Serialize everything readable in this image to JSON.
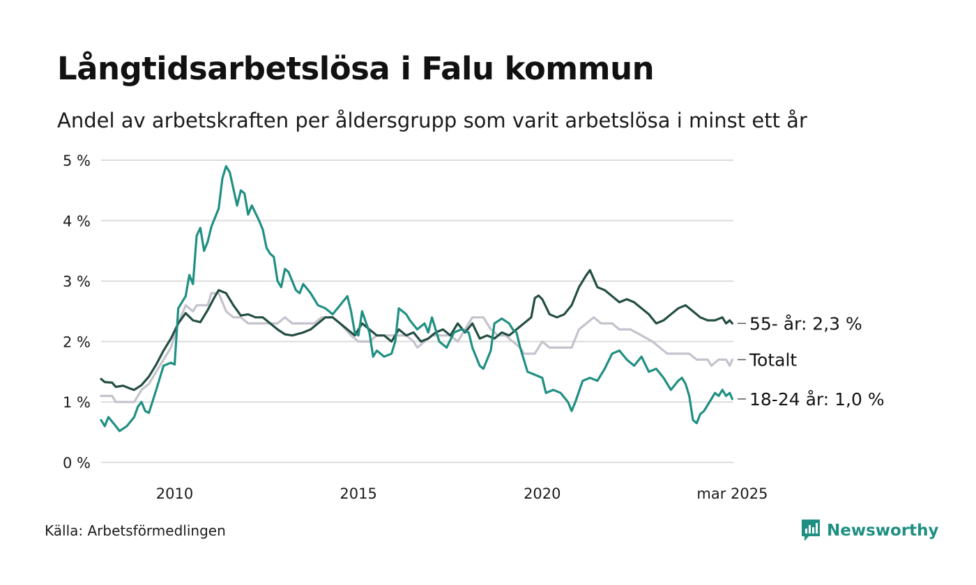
{
  "title": "Långtidsarbetslösa i Falu kommun",
  "subtitle": "Andel av arbetskraften per åldersgrupp som varit arbetslösa i minst ett år",
  "source": "Källa: Arbetsförmedlingen",
  "brand": "Newsworthy",
  "colors": {
    "brand": "#1f8f82",
    "grid": "#dcdcdc"
  },
  "chart_data": {
    "type": "line",
    "x_unit": "year",
    "xlim": [
      2008.0,
      2025.2
    ],
    "ylim": [
      0,
      5
    ],
    "y_ticks": [
      "0 %",
      "1 %",
      "2 %",
      "3 %",
      "4 %",
      "5 %"
    ],
    "x_ticks": [
      {
        "x": 2010,
        "label": "2010"
      },
      {
        "x": 2015,
        "label": "2015"
      },
      {
        "x": 2020,
        "label": "2020"
      },
      {
        "x": 2025.17,
        "label": "mar 2025"
      }
    ],
    "grid": true,
    "series": [
      {
        "name": "Totalt",
        "end_label": "Totalt",
        "color": "#c4c2cc",
        "points": [
          [
            2008.0,
            1.1
          ],
          [
            2008.3,
            1.1
          ],
          [
            2008.4,
            1.0
          ],
          [
            2008.9,
            1.0
          ],
          [
            2009.1,
            1.2
          ],
          [
            2009.3,
            1.3
          ],
          [
            2009.5,
            1.5
          ],
          [
            2009.7,
            1.7
          ],
          [
            2009.9,
            1.9
          ],
          [
            2010.1,
            2.3
          ],
          [
            2010.3,
            2.6
          ],
          [
            2010.5,
            2.5
          ],
          [
            2010.6,
            2.6
          ],
          [
            2010.9,
            2.6
          ],
          [
            2011.0,
            2.8
          ],
          [
            2011.2,
            2.8
          ],
          [
            2011.4,
            2.5
          ],
          [
            2011.6,
            2.4
          ],
          [
            2011.8,
            2.4
          ],
          [
            2012.0,
            2.3
          ],
          [
            2012.3,
            2.3
          ],
          [
            2012.5,
            2.3
          ],
          [
            2012.8,
            2.3
          ],
          [
            2013.0,
            2.4
          ],
          [
            2013.2,
            2.3
          ],
          [
            2013.5,
            2.3
          ],
          [
            2013.8,
            2.3
          ],
          [
            2014.0,
            2.4
          ],
          [
            2014.3,
            2.4
          ],
          [
            2014.5,
            2.3
          ],
          [
            2014.8,
            2.1
          ],
          [
            2015.0,
            2.0
          ],
          [
            2015.3,
            2.0
          ],
          [
            2015.5,
            2.1
          ],
          [
            2015.8,
            2.1
          ],
          [
            2016.0,
            2.1
          ],
          [
            2016.3,
            2.1
          ],
          [
            2016.5,
            2.0
          ],
          [
            2016.6,
            1.9
          ],
          [
            2016.8,
            2.0
          ],
          [
            2017.0,
            2.1
          ],
          [
            2017.3,
            2.1
          ],
          [
            2017.5,
            2.1
          ],
          [
            2017.7,
            2.0
          ],
          [
            2017.9,
            2.2
          ],
          [
            2018.1,
            2.4
          ],
          [
            2018.4,
            2.4
          ],
          [
            2018.6,
            2.2
          ],
          [
            2018.8,
            2.1
          ],
          [
            2019.0,
            2.1
          ],
          [
            2019.2,
            2.0
          ],
          [
            2019.4,
            1.9
          ],
          [
            2019.5,
            1.8
          ],
          [
            2019.8,
            1.8
          ],
          [
            2020.0,
            2.0
          ],
          [
            2020.2,
            1.9
          ],
          [
            2020.8,
            1.9
          ],
          [
            2021.0,
            2.2
          ],
          [
            2021.2,
            2.3
          ],
          [
            2021.4,
            2.4
          ],
          [
            2021.6,
            2.3
          ],
          [
            2021.9,
            2.3
          ],
          [
            2022.1,
            2.2
          ],
          [
            2022.4,
            2.2
          ],
          [
            2022.7,
            2.1
          ],
          [
            2023.0,
            2.0
          ],
          [
            2023.2,
            1.9
          ],
          [
            2023.4,
            1.8
          ],
          [
            2023.6,
            1.8
          ],
          [
            2024.0,
            1.8
          ],
          [
            2024.2,
            1.7
          ],
          [
            2024.5,
            1.7
          ],
          [
            2024.6,
            1.6
          ],
          [
            2024.8,
            1.7
          ],
          [
            2025.0,
            1.7
          ],
          [
            2025.1,
            1.6
          ],
          [
            2025.17,
            1.7
          ]
        ]
      },
      {
        "name": "55- år",
        "end_label": "55- år: 2,3 %",
        "color": "#234d43",
        "points": [
          [
            2008.0,
            1.38
          ],
          [
            2008.1,
            1.33
          ],
          [
            2008.3,
            1.32
          ],
          [
            2008.4,
            1.25
          ],
          [
            2008.6,
            1.27
          ],
          [
            2008.8,
            1.22
          ],
          [
            2008.9,
            1.2
          ],
          [
            2009.1,
            1.28
          ],
          [
            2009.3,
            1.42
          ],
          [
            2009.5,
            1.62
          ],
          [
            2009.7,
            1.85
          ],
          [
            2009.9,
            2.05
          ],
          [
            2010.1,
            2.3
          ],
          [
            2010.3,
            2.47
          ],
          [
            2010.5,
            2.35
          ],
          [
            2010.7,
            2.32
          ],
          [
            2010.9,
            2.52
          ],
          [
            2011.1,
            2.75
          ],
          [
            2011.2,
            2.85
          ],
          [
            2011.4,
            2.8
          ],
          [
            2011.6,
            2.6
          ],
          [
            2011.8,
            2.43
          ],
          [
            2012.0,
            2.45
          ],
          [
            2012.2,
            2.4
          ],
          [
            2012.4,
            2.4
          ],
          [
            2012.6,
            2.3
          ],
          [
            2012.8,
            2.2
          ],
          [
            2013.0,
            2.12
          ],
          [
            2013.2,
            2.1
          ],
          [
            2013.5,
            2.15
          ],
          [
            2013.7,
            2.2
          ],
          [
            2013.9,
            2.3
          ],
          [
            2014.1,
            2.4
          ],
          [
            2014.3,
            2.4
          ],
          [
            2014.5,
            2.3
          ],
          [
            2014.7,
            2.2
          ],
          [
            2014.9,
            2.1
          ],
          [
            2015.1,
            2.3
          ],
          [
            2015.3,
            2.2
          ],
          [
            2015.5,
            2.1
          ],
          [
            2015.7,
            2.1
          ],
          [
            2015.9,
            2.0
          ],
          [
            2016.1,
            2.2
          ],
          [
            2016.3,
            2.1
          ],
          [
            2016.5,
            2.15
          ],
          [
            2016.7,
            2.0
          ],
          [
            2016.9,
            2.05
          ],
          [
            2017.1,
            2.15
          ],
          [
            2017.3,
            2.2
          ],
          [
            2017.5,
            2.1
          ],
          [
            2017.7,
            2.3
          ],
          [
            2017.9,
            2.15
          ],
          [
            2018.1,
            2.3
          ],
          [
            2018.3,
            2.05
          ],
          [
            2018.5,
            2.1
          ],
          [
            2018.7,
            2.05
          ],
          [
            2018.9,
            2.15
          ],
          [
            2019.1,
            2.1
          ],
          [
            2019.3,
            2.2
          ],
          [
            2019.5,
            2.3
          ],
          [
            2019.7,
            2.4
          ],
          [
            2019.8,
            2.72
          ],
          [
            2019.9,
            2.76
          ],
          [
            2020.0,
            2.7
          ],
          [
            2020.2,
            2.45
          ],
          [
            2020.4,
            2.4
          ],
          [
            2020.6,
            2.45
          ],
          [
            2020.8,
            2.6
          ],
          [
            2021.0,
            2.9
          ],
          [
            2021.2,
            3.1
          ],
          [
            2021.3,
            3.18
          ],
          [
            2021.5,
            2.9
          ],
          [
            2021.7,
            2.85
          ],
          [
            2021.9,
            2.75
          ],
          [
            2022.1,
            2.65
          ],
          [
            2022.3,
            2.7
          ],
          [
            2022.5,
            2.65
          ],
          [
            2022.7,
            2.55
          ],
          [
            2022.9,
            2.45
          ],
          [
            2023.1,
            2.3
          ],
          [
            2023.3,
            2.35
          ],
          [
            2023.5,
            2.45
          ],
          [
            2023.7,
            2.55
          ],
          [
            2023.9,
            2.6
          ],
          [
            2024.1,
            2.5
          ],
          [
            2024.3,
            2.4
          ],
          [
            2024.5,
            2.35
          ],
          [
            2024.7,
            2.35
          ],
          [
            2024.9,
            2.4
          ],
          [
            2025.0,
            2.3
          ],
          [
            2025.1,
            2.35
          ],
          [
            2025.17,
            2.3
          ]
        ]
      },
      {
        "name": "18-24 år",
        "end_label": "18-24 år: 1,0 %",
        "color": "#1f8f82",
        "points": [
          [
            2008.0,
            0.7
          ],
          [
            2008.1,
            0.6
          ],
          [
            2008.2,
            0.75
          ],
          [
            2008.4,
            0.6
          ],
          [
            2008.5,
            0.52
          ],
          [
            2008.7,
            0.6
          ],
          [
            2008.9,
            0.75
          ],
          [
            2009.0,
            0.92
          ],
          [
            2009.1,
            1.0
          ],
          [
            2009.2,
            0.85
          ],
          [
            2009.3,
            0.82
          ],
          [
            2009.5,
            1.2
          ],
          [
            2009.7,
            1.6
          ],
          [
            2009.9,
            1.65
          ],
          [
            2010.0,
            1.62
          ],
          [
            2010.1,
            2.55
          ],
          [
            2010.3,
            2.75
          ],
          [
            2010.4,
            3.1
          ],
          [
            2010.5,
            2.95
          ],
          [
            2010.6,
            3.75
          ],
          [
            2010.7,
            3.88
          ],
          [
            2010.8,
            3.5
          ],
          [
            2010.9,
            3.65
          ],
          [
            2011.0,
            3.9
          ],
          [
            2011.2,
            4.2
          ],
          [
            2011.3,
            4.7
          ],
          [
            2011.4,
            4.9
          ],
          [
            2011.5,
            4.8
          ],
          [
            2011.7,
            4.25
          ],
          [
            2011.8,
            4.5
          ],
          [
            2011.9,
            4.45
          ],
          [
            2012.0,
            4.1
          ],
          [
            2012.1,
            4.25
          ],
          [
            2012.3,
            4.0
          ],
          [
            2012.4,
            3.85
          ],
          [
            2012.5,
            3.55
          ],
          [
            2012.6,
            3.45
          ],
          [
            2012.7,
            3.4
          ],
          [
            2012.8,
            3.0
          ],
          [
            2012.9,
            2.9
          ],
          [
            2013.0,
            3.2
          ],
          [
            2013.1,
            3.15
          ],
          [
            2013.3,
            2.85
          ],
          [
            2013.4,
            2.8
          ],
          [
            2013.5,
            2.95
          ],
          [
            2013.7,
            2.8
          ],
          [
            2013.9,
            2.6
          ],
          [
            2014.1,
            2.55
          ],
          [
            2014.3,
            2.45
          ],
          [
            2014.5,
            2.6
          ],
          [
            2014.7,
            2.75
          ],
          [
            2014.8,
            2.5
          ],
          [
            2014.9,
            2.15
          ],
          [
            2015.0,
            2.1
          ],
          [
            2015.1,
            2.5
          ],
          [
            2015.3,
            2.15
          ],
          [
            2015.4,
            1.75
          ],
          [
            2015.5,
            1.85
          ],
          [
            2015.7,
            1.75
          ],
          [
            2015.9,
            1.8
          ],
          [
            2016.0,
            2.0
          ],
          [
            2016.1,
            2.55
          ],
          [
            2016.3,
            2.45
          ],
          [
            2016.4,
            2.35
          ],
          [
            2016.6,
            2.2
          ],
          [
            2016.8,
            2.3
          ],
          [
            2016.9,
            2.15
          ],
          [
            2017.0,
            2.4
          ],
          [
            2017.2,
            2.0
          ],
          [
            2017.4,
            1.9
          ],
          [
            2017.6,
            2.15
          ],
          [
            2017.8,
            2.2
          ],
          [
            2018.0,
            2.15
          ],
          [
            2018.1,
            1.9
          ],
          [
            2018.3,
            1.6
          ],
          [
            2018.4,
            1.55
          ],
          [
            2018.6,
            1.85
          ],
          [
            2018.7,
            2.3
          ],
          [
            2018.9,
            2.38
          ],
          [
            2019.1,
            2.3
          ],
          [
            2019.2,
            2.2
          ],
          [
            2019.3,
            2.15
          ],
          [
            2019.4,
            1.9
          ],
          [
            2019.6,
            1.5
          ],
          [
            2019.8,
            1.45
          ],
          [
            2020.0,
            1.4
          ],
          [
            2020.1,
            1.15
          ],
          [
            2020.3,
            1.2
          ],
          [
            2020.5,
            1.15
          ],
          [
            2020.7,
            1.0
          ],
          [
            2020.8,
            0.85
          ],
          [
            2020.9,
            1.0
          ],
          [
            2021.1,
            1.35
          ],
          [
            2021.3,
            1.4
          ],
          [
            2021.5,
            1.35
          ],
          [
            2021.7,
            1.55
          ],
          [
            2021.9,
            1.8
          ],
          [
            2022.1,
            1.85
          ],
          [
            2022.3,
            1.7
          ],
          [
            2022.5,
            1.6
          ],
          [
            2022.7,
            1.75
          ],
          [
            2022.9,
            1.5
          ],
          [
            2023.1,
            1.55
          ],
          [
            2023.3,
            1.4
          ],
          [
            2023.5,
            1.2
          ],
          [
            2023.7,
            1.35
          ],
          [
            2023.8,
            1.4
          ],
          [
            2023.9,
            1.3
          ],
          [
            2024.0,
            1.1
          ],
          [
            2024.1,
            0.7
          ],
          [
            2024.2,
            0.65
          ],
          [
            2024.3,
            0.8
          ],
          [
            2024.4,
            0.85
          ],
          [
            2024.5,
            0.95
          ],
          [
            2024.6,
            1.05
          ],
          [
            2024.7,
            1.15
          ],
          [
            2024.8,
            1.1
          ],
          [
            2024.9,
            1.2
          ],
          [
            2025.0,
            1.1
          ],
          [
            2025.1,
            1.15
          ],
          [
            2025.17,
            1.05
          ]
        ]
      }
    ]
  }
}
